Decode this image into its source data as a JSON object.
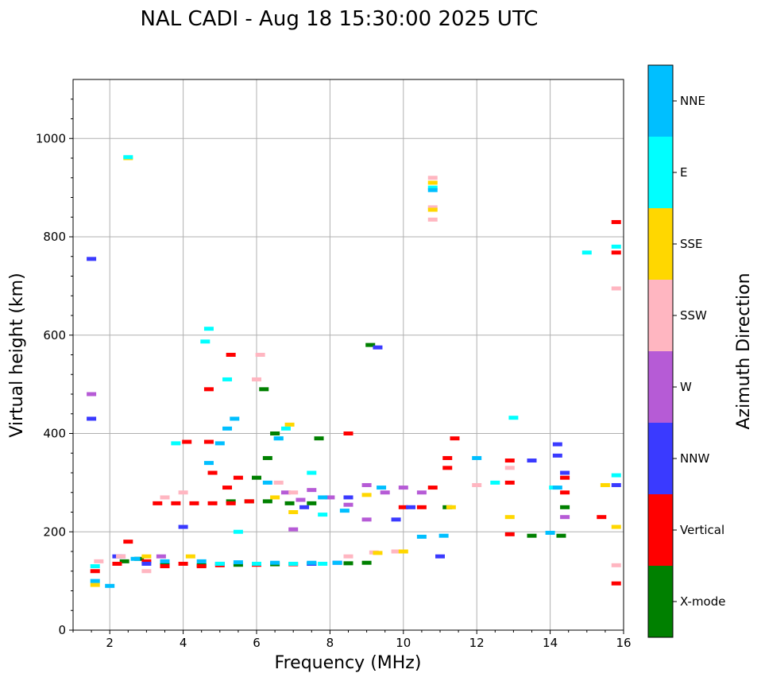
{
  "chart_data": {
    "type": "scatter",
    "title": "NAL CADI - Aug 18 15:30:00 2025 UTC",
    "xlabel": "Frequency (MHz)",
    "ylabel": "Virtual height (km)",
    "xlim": [
      1,
      16
    ],
    "ylim": [
      0,
      1120
    ],
    "xticks": [
      2,
      4,
      6,
      8,
      10,
      12,
      14,
      16
    ],
    "yticks": [
      0,
      200,
      400,
      600,
      800,
      1000
    ],
    "grid": true,
    "colorbar": {
      "title": "Azimuth Direction",
      "categories": [
        {
          "name": "X-mode",
          "color": "#008000"
        },
        {
          "name": "Vertical",
          "color": "#ff0000"
        },
        {
          "name": "NNW",
          "color": "#3a3aff"
        },
        {
          "name": "W",
          "color": "#b65bd6"
        },
        {
          "name": "SSW",
          "color": "#ffb6c1"
        },
        {
          "name": "SSE",
          "color": "#ffd700"
        },
        {
          "name": "E",
          "color": "#00ffff"
        },
        {
          "name": "NNE",
          "color": "#00bfff"
        }
      ]
    },
    "series": [
      {
        "name": "X-mode",
        "points": [
          [
            2.4,
            140
          ],
          [
            2.8,
            145
          ],
          [
            3.5,
            135
          ],
          [
            4.5,
            132
          ],
          [
            5.5,
            133
          ],
          [
            6.5,
            134
          ],
          [
            7.5,
            135
          ],
          [
            8.5,
            136
          ],
          [
            9.0,
            137
          ],
          [
            5.3,
            262
          ],
          [
            5.8,
            262
          ],
          [
            6.3,
            262
          ],
          [
            6.9,
            258
          ],
          [
            7.5,
            258
          ],
          [
            6.0,
            310
          ],
          [
            6.3,
            350
          ],
          [
            6.5,
            400
          ],
          [
            6.2,
            490
          ],
          [
            9.1,
            580
          ],
          [
            11.2,
            250
          ],
          [
            13.5,
            192
          ],
          [
            14.3,
            192
          ],
          [
            14.4,
            250
          ],
          [
            7.7,
            390
          ]
        ]
      },
      {
        "name": "Vertical",
        "points": [
          [
            1.6,
            120
          ],
          [
            2.2,
            135
          ],
          [
            2.5,
            180
          ],
          [
            3.0,
            140
          ],
          [
            3.5,
            130
          ],
          [
            4.0,
            135
          ],
          [
            4.5,
            130
          ],
          [
            5.0,
            132
          ],
          [
            6.0,
            133
          ],
          [
            7.0,
            134
          ],
          [
            3.3,
            258
          ],
          [
            3.8,
            258
          ],
          [
            4.3,
            258
          ],
          [
            4.8,
            258
          ],
          [
            5.3,
            258
          ],
          [
            5.8,
            262
          ],
          [
            4.1,
            383
          ],
          [
            4.7,
            383
          ],
          [
            4.8,
            320
          ],
          [
            5.2,
            290
          ],
          [
            5.5,
            310
          ],
          [
            5.3,
            560
          ],
          [
            4.7,
            490
          ],
          [
            8.5,
            400
          ],
          [
            10.0,
            250
          ],
          [
            10.5,
            250
          ],
          [
            10.8,
            290
          ],
          [
            11.2,
            330
          ],
          [
            11.2,
            350
          ],
          [
            11.4,
            390
          ],
          [
            12.9,
            300
          ],
          [
            12.9,
            345
          ],
          [
            12.9,
            195
          ],
          [
            14.4,
            280
          ],
          [
            14.4,
            310
          ],
          [
            15.4,
            230
          ],
          [
            15.8,
            95
          ],
          [
            15.8,
            830
          ],
          [
            15.8,
            768
          ]
        ]
      },
      {
        "name": "NNW",
        "points": [
          [
            1.5,
            755
          ],
          [
            1.5,
            430
          ],
          [
            2.2,
            150
          ],
          [
            3.0,
            135
          ],
          [
            5.0,
            135
          ],
          [
            7.5,
            135
          ],
          [
            8.2,
            137
          ],
          [
            8.5,
            270
          ],
          [
            9.3,
            575
          ],
          [
            9.8,
            225
          ],
          [
            10.2,
            250
          ],
          [
            11.0,
            150
          ],
          [
            13.5,
            345
          ],
          [
            14.2,
            378
          ],
          [
            14.2,
            355
          ],
          [
            14.4,
            320
          ],
          [
            15.8,
            295
          ],
          [
            7.3,
            250
          ],
          [
            4.0,
            210
          ]
        ]
      },
      {
        "name": "W",
        "points": [
          [
            1.5,
            480
          ],
          [
            2.3,
            150
          ],
          [
            3.4,
            150
          ],
          [
            6.8,
            280
          ],
          [
            7.2,
            265
          ],
          [
            7.5,
            285
          ],
          [
            8.0,
            270
          ],
          [
            8.5,
            255
          ],
          [
            9.0,
            295
          ],
          [
            9.5,
            280
          ],
          [
            10.0,
            290
          ],
          [
            10.5,
            280
          ],
          [
            9.0,
            225
          ],
          [
            7.0,
            205
          ],
          [
            14.4,
            230
          ]
        ]
      },
      {
        "name": "SSW",
        "points": [
          [
            1.7,
            140
          ],
          [
            2.3,
            150
          ],
          [
            3.0,
            120
          ],
          [
            3.5,
            270
          ],
          [
            4.0,
            280
          ],
          [
            6.0,
            510
          ],
          [
            6.1,
            560
          ],
          [
            6.6,
            300
          ],
          [
            7.0,
            280
          ],
          [
            8.5,
            150
          ],
          [
            9.2,
            158
          ],
          [
            9.8,
            160
          ],
          [
            10.8,
            920
          ],
          [
            10.8,
            860
          ],
          [
            10.8,
            835
          ],
          [
            12.0,
            295
          ],
          [
            12.9,
            330
          ],
          [
            15.8,
            695
          ],
          [
            15.8,
            132
          ]
        ]
      },
      {
        "name": "SSE",
        "points": [
          [
            1.6,
            92
          ],
          [
            2.5,
            960
          ],
          [
            3.0,
            150
          ],
          [
            4.2,
            150
          ],
          [
            6.5,
            270
          ],
          [
            6.9,
            418
          ],
          [
            7.0,
            240
          ],
          [
            9.0,
            275
          ],
          [
            9.3,
            157
          ],
          [
            10.0,
            160
          ],
          [
            10.8,
            910
          ],
          [
            10.8,
            855
          ],
          [
            11.3,
            250
          ],
          [
            12.9,
            230
          ],
          [
            15.5,
            295
          ],
          [
            15.8,
            210
          ]
        ]
      },
      {
        "name": "E",
        "points": [
          [
            1.6,
            130
          ],
          [
            2.5,
            962
          ],
          [
            3.8,
            380
          ],
          [
            4.6,
            587
          ],
          [
            4.7,
            613
          ],
          [
            5.2,
            510
          ],
          [
            5.5,
            200
          ],
          [
            6.6,
            390
          ],
          [
            6.8,
            410
          ],
          [
            7.5,
            320
          ],
          [
            7.8,
            235
          ],
          [
            5.0,
            135
          ],
          [
            6.0,
            135
          ],
          [
            7.0,
            135
          ],
          [
            7.8,
            135
          ],
          [
            12.5,
            300
          ],
          [
            13.0,
            432
          ],
          [
            14.1,
            290
          ],
          [
            15.0,
            768
          ],
          [
            15.8,
            780
          ],
          [
            15.8,
            315
          ],
          [
            10.8,
            900
          ]
        ]
      },
      {
        "name": "NNE",
        "points": [
          [
            1.6,
            100
          ],
          [
            2.0,
            90
          ],
          [
            2.7,
            145
          ],
          [
            3.5,
            140
          ],
          [
            4.5,
            140
          ],
          [
            5.5,
            138
          ],
          [
            6.5,
            137
          ],
          [
            7.5,
            137
          ],
          [
            8.2,
            137
          ],
          [
            4.7,
            340
          ],
          [
            5.0,
            380
          ],
          [
            5.2,
            410
          ],
          [
            5.4,
            430
          ],
          [
            6.3,
            300
          ],
          [
            6.6,
            390
          ],
          [
            7.8,
            270
          ],
          [
            8.4,
            243
          ],
          [
            9.4,
            290
          ],
          [
            10.5,
            190
          ],
          [
            11.1,
            192
          ],
          [
            12.0,
            350
          ],
          [
            14.0,
            198
          ],
          [
            14.2,
            290
          ],
          [
            10.8,
            895
          ]
        ]
      }
    ]
  }
}
